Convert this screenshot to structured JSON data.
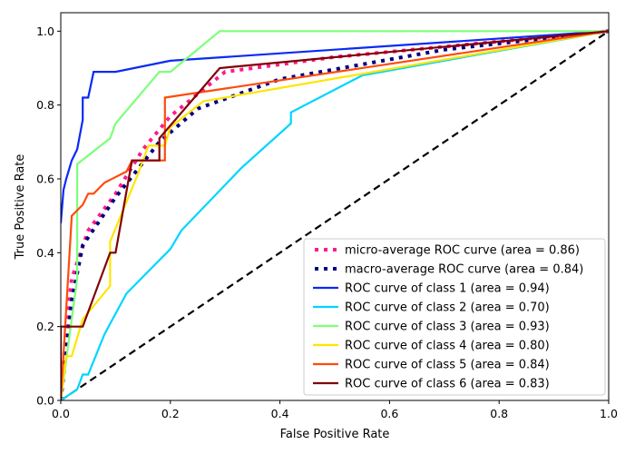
{
  "chart_data": {
    "type": "line",
    "title": "",
    "xlabel": "False Positive Rate",
    "ylabel": "True Positive Rate",
    "xlim": [
      0.0,
      1.0
    ],
    "ylim": [
      0.0,
      1.05
    ],
    "xticks": [
      "0.0",
      "0.2",
      "0.4",
      "0.6",
      "0.8",
      "1.0"
    ],
    "yticks": [
      "0.0",
      "0.2",
      "0.4",
      "0.6",
      "0.8",
      "1.0"
    ],
    "grid": false,
    "legend_position": "lower-right",
    "series": [
      {
        "name": "micro-average ROC curve (area = 0.86)",
        "color": "#ff1a8c",
        "style": "dotted",
        "x": [
          0,
          0.01,
          0.02,
          0.05,
          0.1,
          0.15,
          0.2,
          0.3,
          0.5,
          1.0
        ],
        "y": [
          0,
          0.2,
          0.33,
          0.46,
          0.56,
          0.68,
          0.77,
          0.89,
          0.93,
          1.0
        ]
      },
      {
        "name": "macro-average ROC curve (area = 0.84)",
        "color": "#000080",
        "style": "dotted",
        "x": [
          0,
          0.02,
          0.04,
          0.1,
          0.18,
          0.25,
          0.4,
          0.7,
          1.0
        ],
        "y": [
          0,
          0.27,
          0.42,
          0.55,
          0.7,
          0.79,
          0.87,
          0.95,
          1.0
        ]
      },
      {
        "name": "ROC curve of class 1 (area = 0.94)",
        "color": "#0a2af5",
        "style": "solid",
        "x": [
          0,
          0.005,
          0.01,
          0.02,
          0.03,
          0.04,
          0.04,
          0.05,
          0.06,
          0.1,
          0.2,
          1.0
        ],
        "y": [
          0.48,
          0.57,
          0.6,
          0.65,
          0.68,
          0.76,
          0.82,
          0.82,
          0.89,
          0.89,
          0.92,
          1.0
        ]
      },
      {
        "name": "ROC curve of class 2 (area = 0.70)",
        "color": "#00d5ff",
        "style": "solid",
        "x": [
          0,
          0.03,
          0.04,
          0.05,
          0.08,
          0.12,
          0.2,
          0.22,
          0.33,
          0.42,
          0.42,
          0.55,
          1.0
        ],
        "y": [
          0,
          0.03,
          0.07,
          0.07,
          0.18,
          0.29,
          0.41,
          0.46,
          0.63,
          0.75,
          0.78,
          0.88,
          1.0
        ]
      },
      {
        "name": "ROC curve of class 3 (area = 0.93)",
        "color": "#7dff7a",
        "style": "solid",
        "x": [
          0,
          0.03,
          0.03,
          0.09,
          0.1,
          0.18,
          0.2,
          0.29,
          1.0
        ],
        "y": [
          0,
          0.33,
          0.64,
          0.71,
          0.75,
          0.89,
          0.89,
          1.0,
          1.0
        ]
      },
      {
        "name": "ROC curve of class 4 (area = 0.80)",
        "color": "#ffe500",
        "style": "solid",
        "x": [
          0,
          0.01,
          0.02,
          0.04,
          0.09,
          0.09,
          0.14,
          0.16,
          0.19,
          0.2,
          0.26,
          1.0
        ],
        "y": [
          0,
          0.12,
          0.12,
          0.22,
          0.31,
          0.43,
          0.61,
          0.69,
          0.69,
          0.74,
          0.81,
          1.0
        ]
      },
      {
        "name": "ROC curve of class 5 (area = 0.84)",
        "color": "#ff4a0a",
        "style": "solid",
        "x": [
          0,
          0.02,
          0.04,
          0.05,
          0.06,
          0.08,
          0.12,
          0.13,
          0.19,
          0.19,
          1.0
        ],
        "y": [
          0,
          0.5,
          0.53,
          0.56,
          0.56,
          0.59,
          0.62,
          0.65,
          0.65,
          0.82,
          1.0
        ]
      },
      {
        "name": "ROC curve of class 6 (area = 0.83)",
        "color": "#800000",
        "style": "solid",
        "x": [
          0,
          0,
          0.04,
          0.09,
          0.1,
          0.13,
          0.18,
          0.18,
          0.29,
          1.0
        ],
        "y": [
          0,
          0.2,
          0.2,
          0.4,
          0.4,
          0.65,
          0.65,
          0.71,
          0.9,
          1.0
        ]
      }
    ],
    "reference_line": {
      "x": [
        0,
        1
      ],
      "y": [
        0,
        1
      ],
      "color": "#000000",
      "style": "dashed"
    }
  }
}
